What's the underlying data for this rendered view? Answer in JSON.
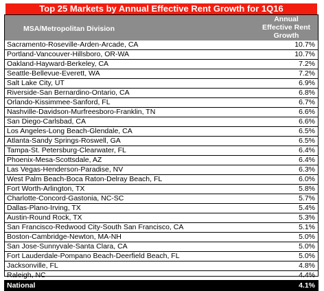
{
  "title": "Top 25 Markets by Annual Effective Rent Growth for 1Q16",
  "columns": {
    "msa": "MSA/Metropolitan Division",
    "growth_line1": "Annual",
    "growth_line2": "Effective Rent",
    "growth_line3": "Growth"
  },
  "rows": [
    {
      "name": "Sacramento-Roseville-Arden-Arcade, CA",
      "value": "10.7%"
    },
    {
      "name": "Portland-Vancouver-Hillsboro, OR-WA",
      "value": "10.7%"
    },
    {
      "name": "Oakland-Hayward-Berkeley, CA",
      "value": "7.2%"
    },
    {
      "name": "Seattle-Bellevue-Everett, WA",
      "value": "7.2%"
    },
    {
      "name": "Salt Lake City, UT",
      "value": "6.9%"
    },
    {
      "name": "Riverside-San Bernardino-Ontario, CA",
      "value": "6.8%"
    },
    {
      "name": "Orlando-Kissimmee-Sanford, FL",
      "value": "6.7%"
    },
    {
      "name": "Nashville-Davidson-Murfreesboro-Franklin, TN",
      "value": "6.6%"
    },
    {
      "name": "San Diego-Carlsbad, CA",
      "value": "6.6%"
    },
    {
      "name": "Los Angeles-Long Beach-Glendale, CA",
      "value": "6.5%"
    },
    {
      "name": "Atlanta-Sandy Springs-Roswell, GA",
      "value": "6.5%"
    },
    {
      "name": "Tampa-St. Petersburg-Clearwater, FL",
      "value": "6.4%"
    },
    {
      "name": "Phoenix-Mesa-Scottsdale, AZ",
      "value": "6.4%"
    },
    {
      "name": "Las Vegas-Henderson-Paradise, NV",
      "value": "6.3%"
    },
    {
      "name": "West Palm Beach-Boca Raton-Delray Beach, FL",
      "value": "6.0%"
    },
    {
      "name": "Fort Worth-Arlington, TX",
      "value": "5.8%"
    },
    {
      "name": "Charlotte-Concord-Gastonia, NC-SC",
      "value": "5.7%"
    },
    {
      "name": "Dallas-Plano-Irving, TX",
      "value": "5.4%"
    },
    {
      "name": "Austin-Round Rock, TX",
      "value": "5.3%"
    },
    {
      "name": "San Francisco-Redwood City-South San Francisco, CA",
      "value": "5.1%"
    },
    {
      "name": "Boston-Cambridge-Newton, MA-NH",
      "value": "5.0%"
    },
    {
      "name": "San Jose-Sunnyvale-Santa Clara, CA",
      "value": "5.0%"
    },
    {
      "name": "Fort Lauderdale-Pompano Beach-Deerfield Beach, FL",
      "value": "5.0%"
    },
    {
      "name": "Jacksonville, FL",
      "value": "4.8%"
    },
    {
      "name": "Raleigh, NC",
      "value": "4.4%"
    }
  ],
  "national": {
    "name": "National",
    "value": "4.1%"
  },
  "colors": {
    "title_bg": "#f21d0f",
    "header_bg": "#8c8c8c",
    "national_bg": "#000000"
  }
}
